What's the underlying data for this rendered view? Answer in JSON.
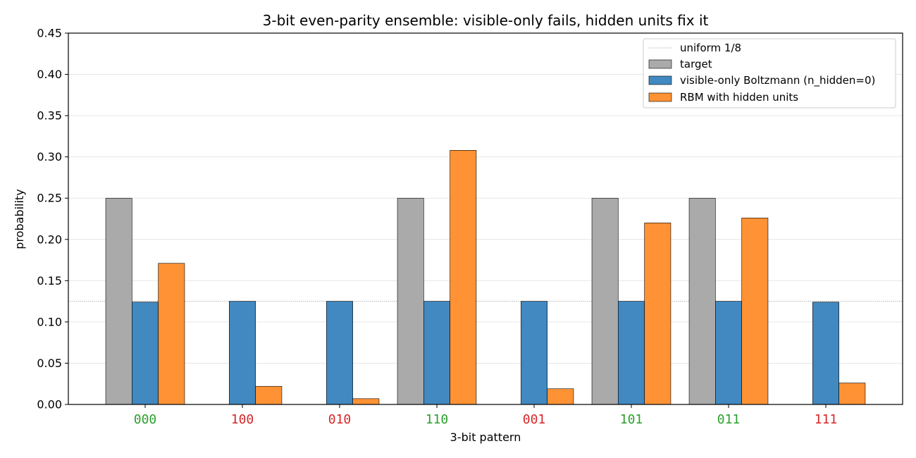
{
  "chart_data": {
    "type": "bar",
    "title": "3-bit even-parity ensemble: visible-only fails, hidden units fix it",
    "xlabel": "3-bit pattern",
    "ylabel": "probability",
    "ylim": [
      0,
      0.45
    ],
    "yticks": [
      "0.00",
      "0.05",
      "0.10",
      "0.15",
      "0.20",
      "0.25",
      "0.30",
      "0.35",
      "0.40",
      "0.45"
    ],
    "categories": [
      "000",
      "100",
      "010",
      "110",
      "001",
      "101",
      "011",
      "111"
    ],
    "category_colors": [
      "#2ca02c",
      "#d62728",
      "#d62728",
      "#2ca02c",
      "#d62728",
      "#2ca02c",
      "#2ca02c",
      "#d62728"
    ],
    "grid": "y",
    "legend_position": "top-right",
    "reference_line": {
      "name": "uniform 1/8",
      "value": 0.125,
      "color": "#888888"
    },
    "series": [
      {
        "name": "target",
        "color": "#aaaaaa",
        "values": [
          0.25,
          0,
          0,
          0.25,
          0,
          0.25,
          0.25,
          0
        ]
      },
      {
        "name": "visible-only Boltzmann (n_hidden=0)",
        "color": "#4189c0",
        "values": [
          0.124,
          0.125,
          0.125,
          0.125,
          0.125,
          0.125,
          0.125,
          0.124
        ]
      },
      {
        "name": "RBM with hidden units",
        "color": "#ff9234",
        "values": [
          0.171,
          0.022,
          0.007,
          0.308,
          0.019,
          0.22,
          0.226,
          0.026
        ]
      }
    ]
  }
}
